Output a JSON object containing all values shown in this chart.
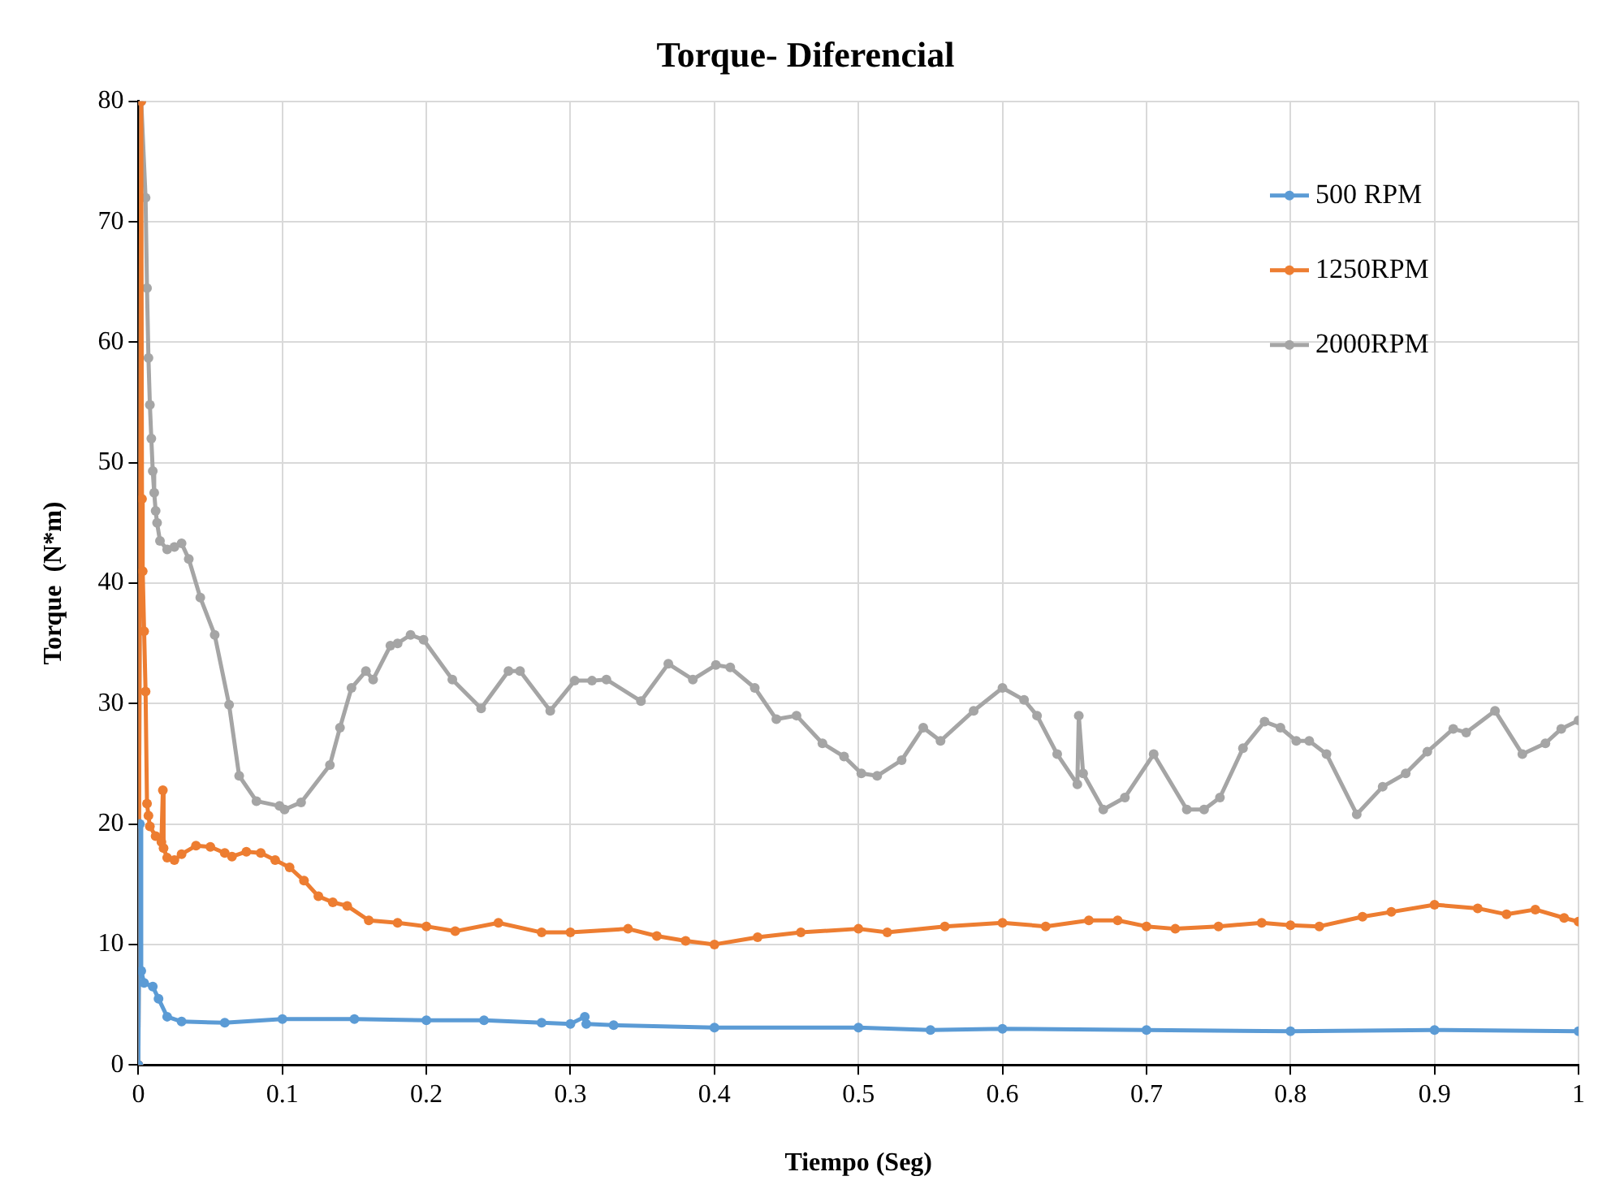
{
  "chart_data": {
    "type": "line",
    "title": "Torque- Diferencial",
    "xlabel": "Tiempo (Seg)",
    "ylabel": "Torque  (N*m)",
    "xlim": [
      0,
      1
    ],
    "xticks": [
      0,
      0.1,
      0.2,
      0.3,
      0.4,
      0.5,
      0.6,
      0.7,
      0.8,
      0.9,
      1
    ],
    "ylim": [
      0,
      80
    ],
    "yticks": [
      0,
      10,
      20,
      30,
      40,
      50,
      60,
      70,
      80
    ],
    "grid": true,
    "legend": "top right",
    "marker": "circle",
    "line_style": "solid",
    "series": [
      {
        "name": "500 RPM",
        "color": "#5b9bd5",
        "x": [
          0,
          0.001,
          0.002,
          0.004,
          0.01,
          0.014,
          0.02,
          0.03,
          0.06,
          0.1,
          0.15,
          0.2,
          0.24,
          0.28,
          0.3,
          0.31,
          0.311,
          0.33,
          0.4,
          0.5,
          0.55,
          0.6,
          0.7,
          0.8,
          0.9,
          1
        ],
        "values": [
          0,
          20,
          7.8,
          6.8,
          6.5,
          5.5,
          4,
          3.6,
          3.5,
          3.8,
          3.8,
          3.7,
          3.7,
          3.5,
          3.4,
          4,
          3.4,
          3.3,
          3.1,
          3.1,
          2.9,
          3,
          2.9,
          2.8,
          2.9,
          2.8
        ]
      },
      {
        "name": "1250RPM",
        "color": "#ed7d31",
        "x": [
          0,
          0.002,
          0.0025,
          0.003,
          0.004,
          0.005,
          0.006,
          0.007,
          0.008,
          0.012,
          0.016,
          0.017,
          0.0175,
          0.02,
          0.025,
          0.03,
          0.04,
          0.05,
          0.06,
          0.065,
          0.075,
          0.085,
          0.095,
          0.105,
          0.115,
          0.125,
          0.135,
          0.145,
          0.16,
          0.18,
          0.2,
          0.22,
          0.25,
          0.28,
          0.3,
          0.34,
          0.36,
          0.38,
          0.4,
          0.43,
          0.46,
          0.5,
          0.52,
          0.56,
          0.6,
          0.63,
          0.66,
          0.68,
          0.7,
          0.72,
          0.75,
          0.78,
          0.8,
          0.82,
          0.85,
          0.87,
          0.9,
          0.93,
          0.95,
          0.97,
          0.99,
          1
        ],
        "values": [
          0,
          80,
          47,
          41,
          36,
          31,
          21.7,
          20.7,
          19.8,
          19,
          18.5,
          22.8,
          18,
          17.2,
          17,
          17.5,
          18.2,
          18.1,
          17.6,
          17.3,
          17.7,
          17.6,
          17,
          16.4,
          15.3,
          14,
          13.5,
          13.2,
          12,
          11.8,
          11.5,
          11.1,
          11.8,
          11,
          11,
          11.3,
          10.7,
          10.3,
          10,
          10.6,
          11,
          11.3,
          11,
          11.5,
          11.8,
          11.5,
          12,
          12,
          11.5,
          11.3,
          11.5,
          11.8,
          11.6,
          11.5,
          12.3,
          12.7,
          13.3,
          13,
          12.5,
          12.9,
          12.2,
          11.9
        ]
      },
      {
        "name": "2000RPM",
        "color": "#a5a5a5",
        "x": [
          0,
          0.002,
          0.005,
          0.006,
          0.007,
          0.008,
          0.009,
          0.01,
          0.011,
          0.012,
          0.013,
          0.015,
          0.02,
          0.025,
          0.03,
          0.035,
          0.043,
          0.053,
          0.063,
          0.07,
          0.082,
          0.098,
          0.1015,
          0.113,
          0.133,
          0.14,
          0.148,
          0.158,
          0.163,
          0.175,
          0.18,
          0.189,
          0.198,
          0.218,
          0.238,
          0.257,
          0.265,
          0.286,
          0.303,
          0.315,
          0.325,
          0.349,
          0.368,
          0.385,
          0.401,
          0.411,
          0.428,
          0.443,
          0.457,
          0.475,
          0.49,
          0.502,
          0.513,
          0.53,
          0.545,
          0.557,
          0.58,
          0.6,
          0.615,
          0.624,
          0.638,
          0.652,
          0.653,
          0.656,
          0.67,
          0.685,
          0.705,
          0.728,
          0.74,
          0.751,
          0.767,
          0.782,
          0.793,
          0.804,
          0.813,
          0.825,
          0.846,
          0.864,
          0.88,
          0.895,
          0.913,
          0.922,
          0.942,
          0.961,
          0.977,
          0.988,
          1
        ],
        "values": [
          0,
          80,
          72,
          64.5,
          58.7,
          54.8,
          52,
          49.3,
          47.5,
          46,
          45,
          43.5,
          42.8,
          43,
          43.3,
          42,
          38.8,
          35.7,
          29.9,
          24,
          21.9,
          21.5,
          21.2,
          21.8,
          24.9,
          28,
          31.3,
          32.7,
          32,
          34.8,
          35,
          35.7,
          35.3,
          32,
          29.6,
          32.7,
          32.7,
          29.4,
          31.9,
          31.9,
          32,
          30.2,
          33.3,
          32,
          33.2,
          33,
          31.3,
          28.7,
          29,
          26.7,
          25.6,
          24.2,
          24,
          25.3,
          28,
          26.9,
          29.4,
          31.3,
          30.3,
          29,
          25.8,
          23.3,
          29,
          24.2,
          21.2,
          22.2,
          25.8,
          21.2,
          21.2,
          22.2,
          26.3,
          28.5,
          28,
          26.9,
          26.9,
          25.8,
          20.8,
          23.1,
          24.2,
          26,
          27.9,
          27.6,
          29.4,
          25.8,
          26.7,
          27.9,
          28.6
        ]
      }
    ]
  }
}
